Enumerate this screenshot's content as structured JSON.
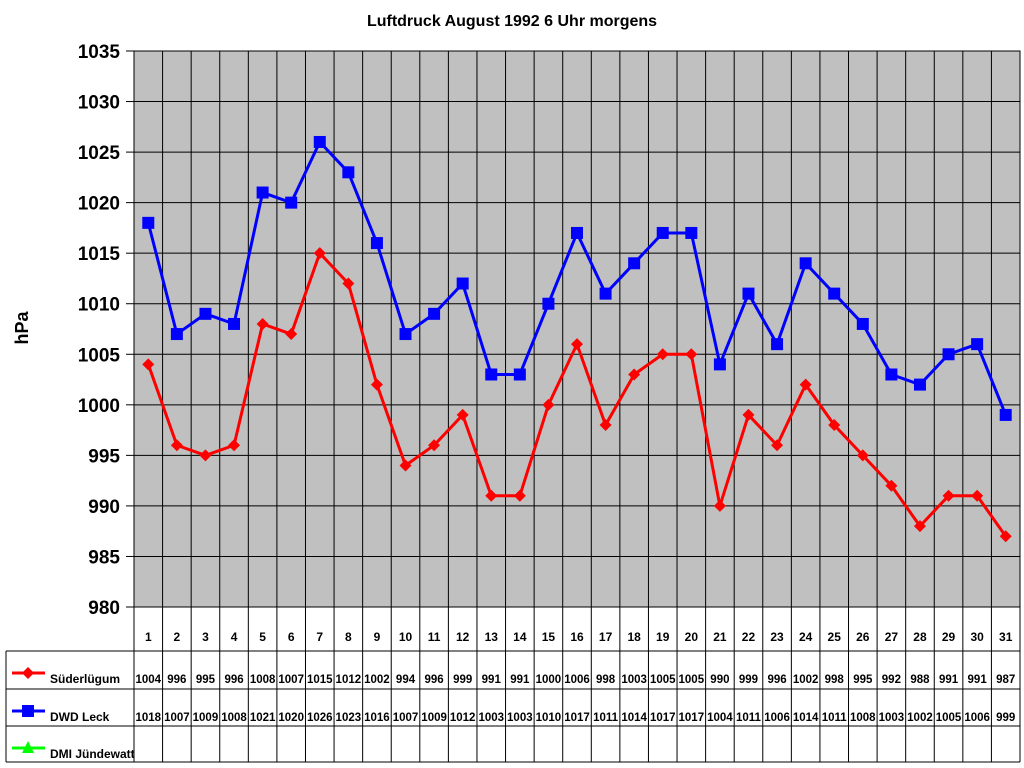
{
  "chart_data": {
    "type": "line",
    "title": "Luftdruck August 1992 6 Uhr morgens",
    "ylabel": "hPa",
    "xlabel": "",
    "ylim": [
      980,
      1035
    ],
    "ytick_step": 5,
    "yticks": [
      "980",
      "985",
      "990",
      "995",
      "1000",
      "1005",
      "1010",
      "1015",
      "1020",
      "1025",
      "1030",
      "1035"
    ],
    "grid": true,
    "plot_background": "#C0C0C0",
    "legend_placement": "data-table-left",
    "categories": [
      "1",
      "2",
      "3",
      "4",
      "5",
      "6",
      "7",
      "8",
      "9",
      "10",
      "11",
      "12",
      "13",
      "14",
      "15",
      "16",
      "17",
      "18",
      "19",
      "20",
      "21",
      "22",
      "23",
      "24",
      "25",
      "26",
      "27",
      "28",
      "29",
      "30",
      "31"
    ],
    "series": [
      {
        "name": "Süderlügum",
        "color": "#FF0000",
        "marker": "diamond",
        "values": [
          1004,
          996,
          995,
          996,
          1008,
          1007,
          1015,
          1012,
          1002,
          994,
          996,
          999,
          991,
          991,
          1000,
          1006,
          998,
          1003,
          1005,
          1005,
          990,
          999,
          996,
          1002,
          998,
          995,
          992,
          988,
          991,
          991,
          987
        ]
      },
      {
        "name": "DWD Leck",
        "color": "#0000FF",
        "marker": "square",
        "values": [
          1018,
          1007,
          1009,
          1008,
          1021,
          1020,
          1026,
          1023,
          1016,
          1007,
          1009,
          1012,
          1003,
          1003,
          1010,
          1017,
          1011,
          1014,
          1017,
          1017,
          1004,
          1011,
          1006,
          1014,
          1011,
          1008,
          1003,
          1002,
          1005,
          1006,
          999
        ]
      },
      {
        "name": "DMI Jündewatt",
        "color": "#00FF00",
        "marker": "triangle",
        "values": [
          null,
          null,
          null,
          null,
          null,
          null,
          null,
          null,
          null,
          null,
          null,
          null,
          null,
          null,
          null,
          null,
          null,
          null,
          null,
          null,
          null,
          null,
          null,
          null,
          null,
          null,
          null,
          null,
          null,
          null,
          null
        ]
      }
    ]
  }
}
